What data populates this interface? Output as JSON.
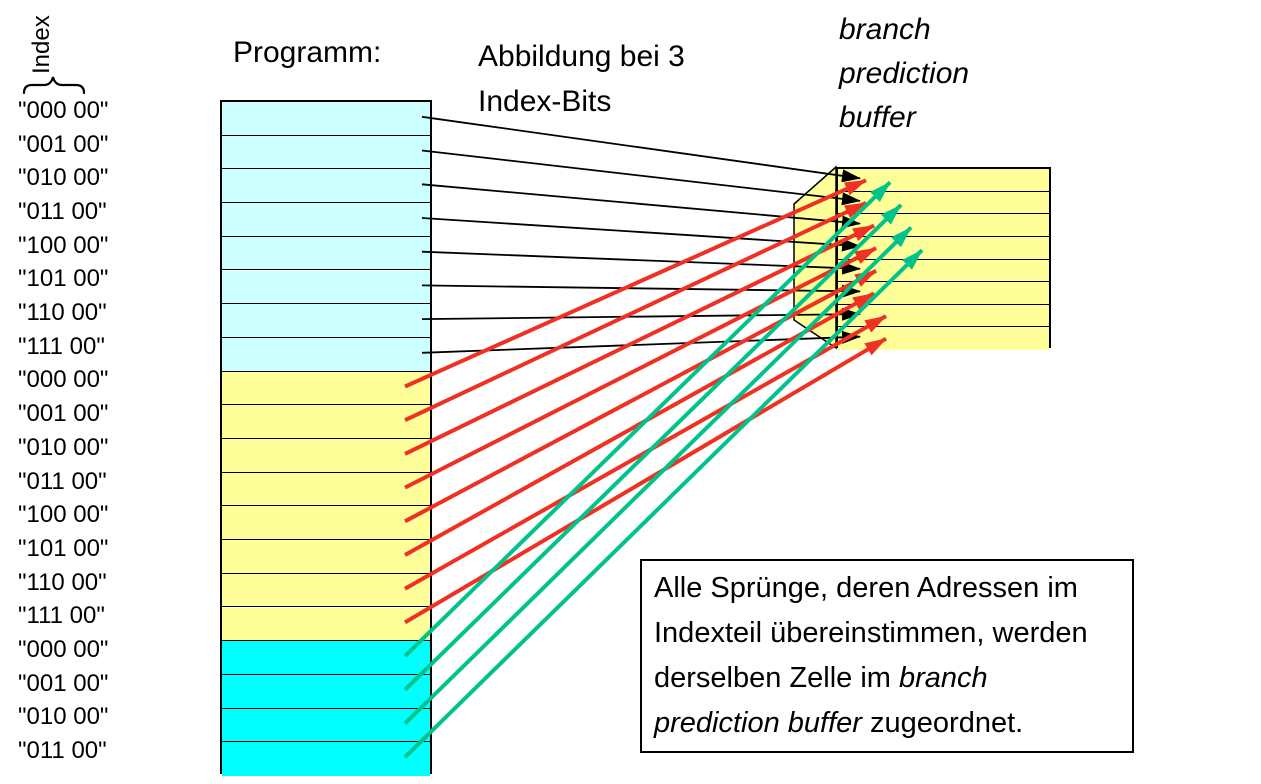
{
  "index_label": "Index",
  "program_title": "Programm:",
  "mapping_title": {
    "line1": "Abbildung bei 3",
    "line2": "Index-Bits"
  },
  "buffer_title": {
    "line1": "branch",
    "line2": "prediction",
    "line3": "buffer"
  },
  "address_labels": [
    "\"000 00\"",
    "\"001 00\"",
    "\"010 00\"",
    "\"011 00\"",
    "\"100 00\"",
    "\"101 00\"",
    "\"110 00\"",
    "\"111 00\"",
    "\"000 00\"",
    "\"001 00\"",
    "\"010 00\"",
    "\"011 00\"",
    "\"100 00\"",
    "\"101 00\"",
    "\"110 00\"",
    "\"111 00\"",
    "\"000 00\"",
    "\"001 00\"",
    "\"010 00\"",
    "\"011 00\""
  ],
  "program_sections": [
    {
      "name": "address-block-1",
      "rows": 8,
      "color": "#ccffff"
    },
    {
      "name": "address-block-2",
      "rows": 8,
      "color": "#ffff99"
    },
    {
      "name": "address-block-3",
      "rows": 4,
      "color": "#00ffff"
    }
  ],
  "buffer": {
    "cells": 8,
    "color": "#ffff99"
  },
  "note": {
    "part1": "Alle Sprünge, deren Adressen im Indexteil übereinstimmen, werden derselben Zelle im ",
    "italic": "branch prediction buffer",
    "part2": " zugeordnet."
  },
  "arrow_colors": {
    "black": "#000000",
    "red": "#ef3124",
    "green": "#00c28b"
  },
  "mappings": {
    "black": [
      [
        0,
        0
      ],
      [
        1,
        1
      ],
      [
        2,
        2
      ],
      [
        3,
        3
      ],
      [
        4,
        4
      ],
      [
        5,
        5
      ],
      [
        6,
        6
      ],
      [
        7,
        7
      ]
    ],
    "red": [
      [
        8,
        0
      ],
      [
        9,
        1
      ],
      [
        10,
        2
      ],
      [
        11,
        3
      ],
      [
        12,
        4
      ],
      [
        13,
        5
      ],
      [
        14,
        6
      ],
      [
        15,
        7
      ]
    ],
    "green": [
      [
        16,
        0
      ],
      [
        17,
        1
      ],
      [
        18,
        2
      ],
      [
        19,
        3
      ]
    ]
  }
}
